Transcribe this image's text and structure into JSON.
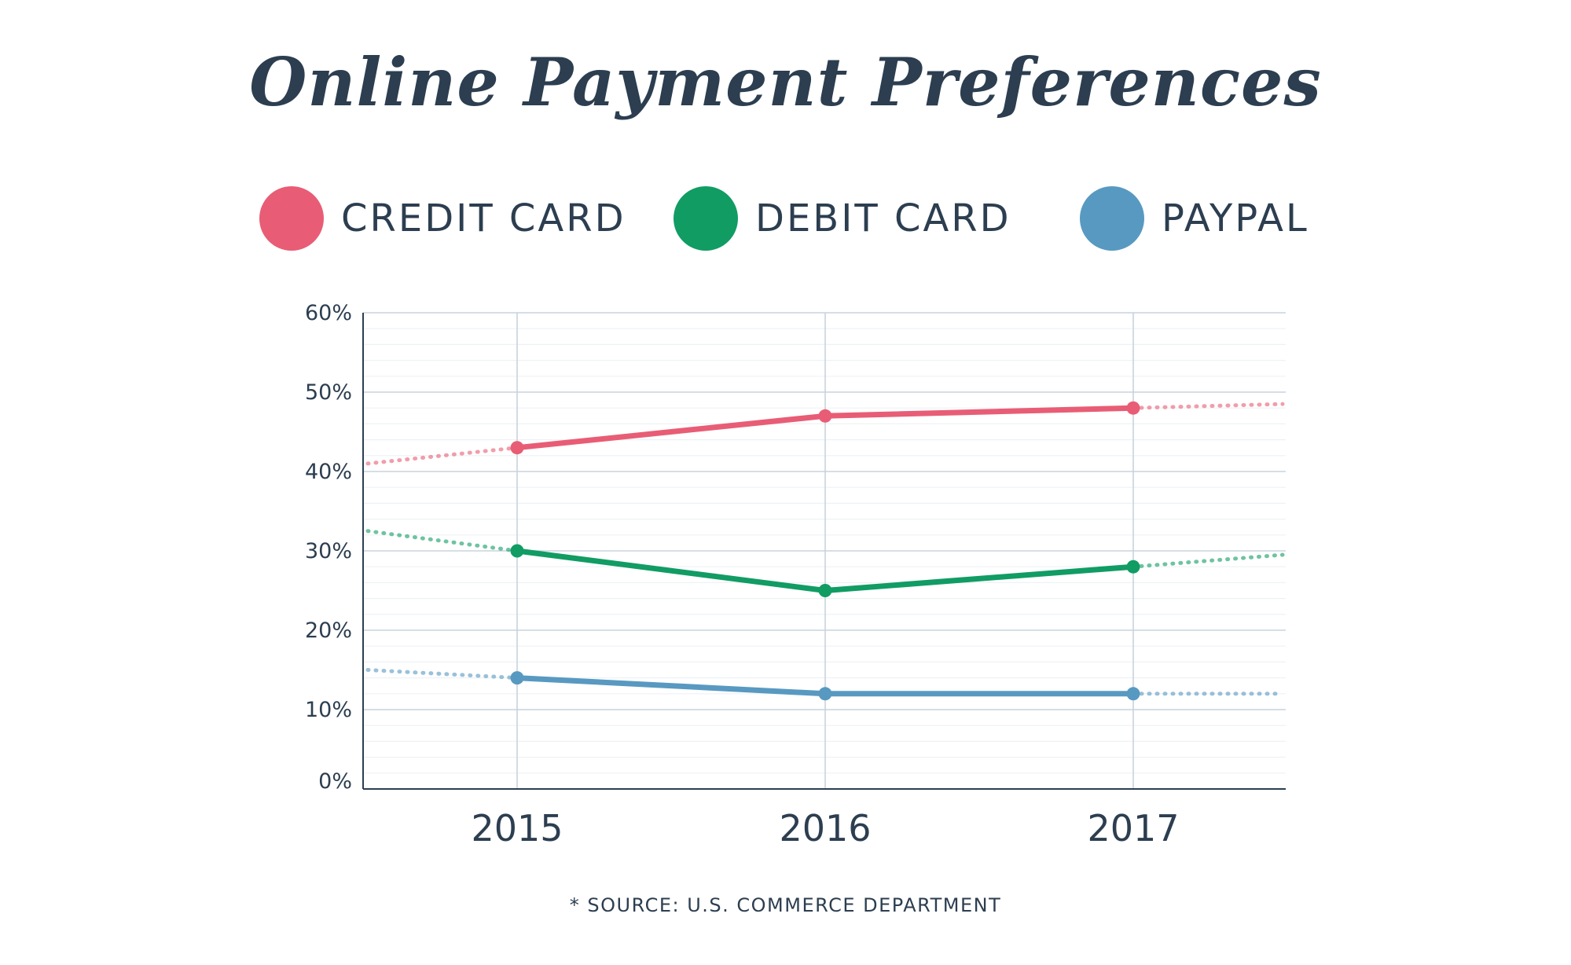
{
  "chart_data": {
    "type": "line",
    "title": "Online Payment Preferences",
    "categories": [
      "2015",
      "2016",
      "2017"
    ],
    "x_tick_labels": [
      "2015",
      "2016",
      "2017"
    ],
    "y_tick_labels": [
      "0%",
      "10%",
      "20%",
      "30%",
      "40%",
      "50%",
      "60%"
    ],
    "ylim": [
      0,
      60
    ],
    "y_unit": "%",
    "grid": true,
    "legend_position": "top",
    "series": [
      {
        "name": "CREDIT CARD",
        "color": "#e85d75",
        "values": [
          43,
          47,
          48
        ],
        "trend_before": 41,
        "trend_after": 48.5
      },
      {
        "name": "DEBIT CARD",
        "color": "#119c64",
        "values": [
          30,
          25,
          28
        ],
        "trend_before": 32.5,
        "trend_after": 29.5
      },
      {
        "name": "PAYPAL",
        "color": "#5899c1",
        "values": [
          14,
          12,
          12
        ],
        "trend_before": 15,
        "trend_after": 12
      }
    ],
    "annotations": [
      "* SOURCE: U.S. COMMERCE DEPARTMENT"
    ]
  },
  "colors": {
    "text": "#2c3e50",
    "grid_major": "#c8d3dd",
    "grid_minor": "#eef2f5",
    "axis": "#2c3e50"
  }
}
